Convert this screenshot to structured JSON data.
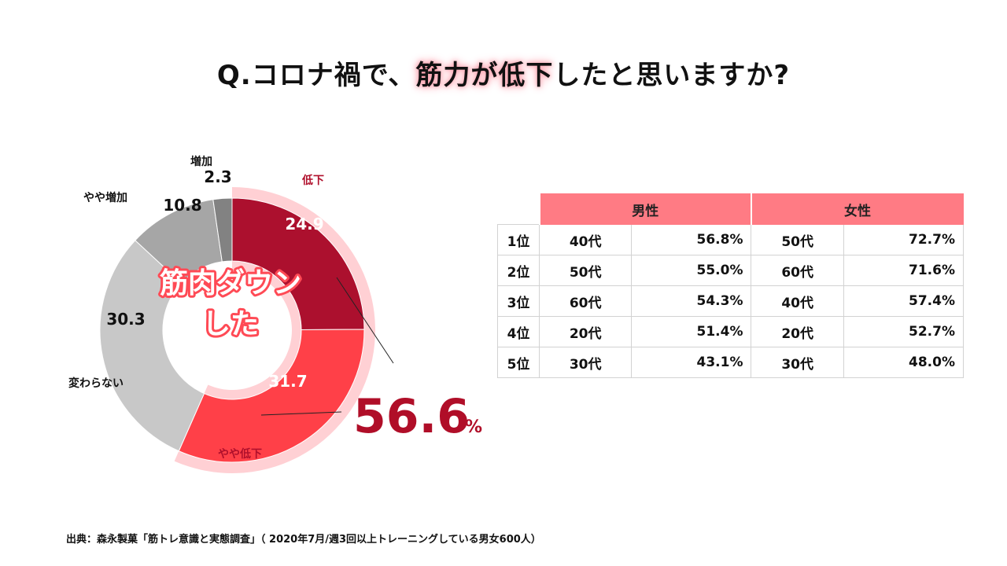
{
  "title": {
    "prefix": "Q.コロナ禍で、",
    "highlight": "筋力が低下",
    "suffix": "したと思いますか?"
  },
  "chart_data": {
    "type": "donut",
    "unit": "%",
    "slices": [
      {
        "label": "低下",
        "value": 24.9,
        "value_label": "24.9",
        "color": "#ac102e"
      },
      {
        "label": "やや低下",
        "value": 31.7,
        "value_label": "31.7",
        "color": "#ff4048"
      },
      {
        "label": "変わらない",
        "value": 30.3,
        "value_label": "30.3",
        "color": "#c8c8c8"
      },
      {
        "label": "やや増加",
        "value": 10.8,
        "value_label": "10.8",
        "color": "#a6a6a6"
      },
      {
        "label": "増加",
        "value": 2.3,
        "value_label": "2.3",
        "color": "#828282"
      }
    ],
    "center_text": [
      "筋肉ダウン",
      "した"
    ],
    "total": {
      "value": "56.6",
      "unit": "%"
    },
    "highlight_color": "#ffd0d4"
  },
  "table": {
    "groups": [
      "男性",
      "女性"
    ],
    "rows": [
      {
        "rank": "1位",
        "m_age": "40代",
        "m_pct": "56.8%",
        "f_age": "50代",
        "f_pct": "72.7%"
      },
      {
        "rank": "2位",
        "m_age": "50代",
        "m_pct": "55.0%",
        "f_age": "60代",
        "f_pct": "71.6%"
      },
      {
        "rank": "3位",
        "m_age": "60代",
        "m_pct": "54.3%",
        "f_age": "40代",
        "f_pct": "57.4%"
      },
      {
        "rank": "4位",
        "m_age": "20代",
        "m_pct": "51.4%",
        "f_age": "20代",
        "f_pct": "52.7%"
      },
      {
        "rank": "5位",
        "m_age": "30代",
        "m_pct": "43.1%",
        "f_age": "30代",
        "f_pct": "48.0%"
      }
    ]
  },
  "source": "出典：森永製菓「筋トレ意識と実態調査」（ 2020年7月/週3回以上トレーニングしている男女600人）"
}
